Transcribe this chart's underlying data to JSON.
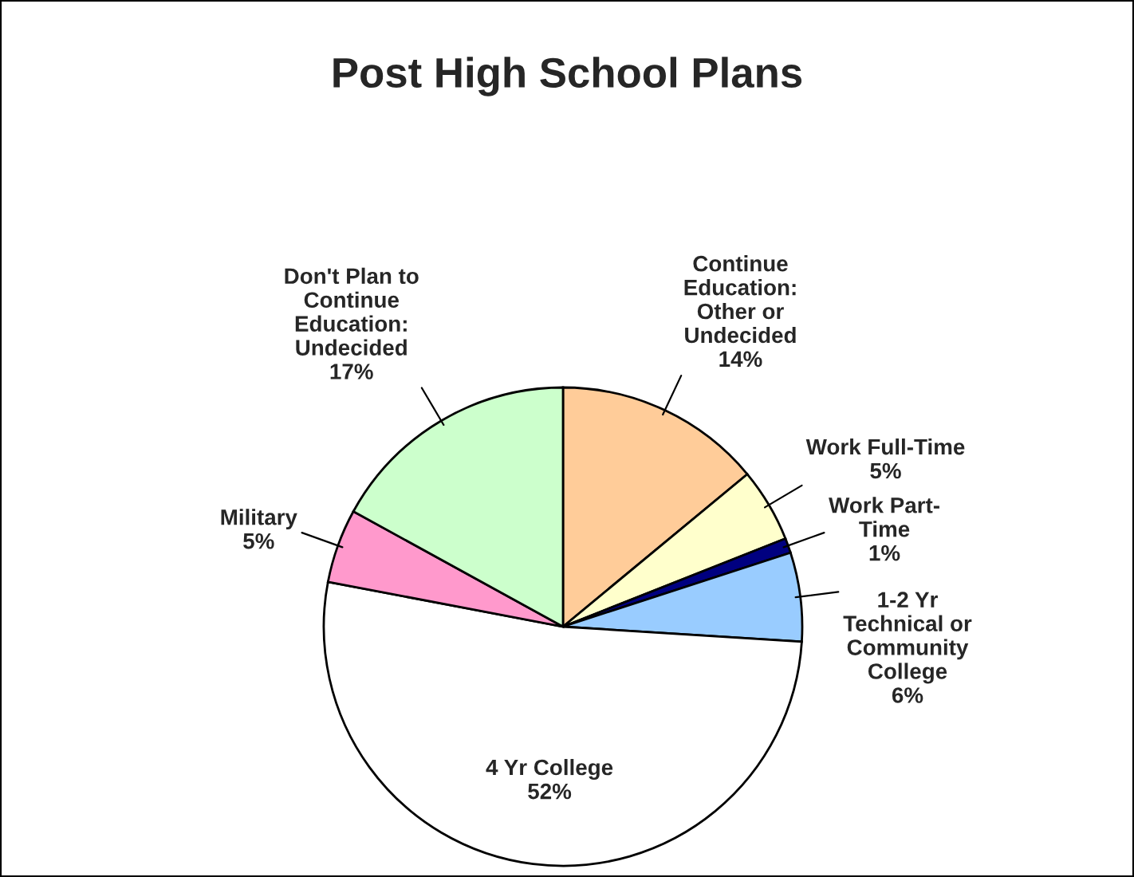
{
  "chart_data": {
    "type": "pie",
    "title": "Post High School Plans",
    "categories": [
      "Continue\nEducation:\nOther or\nUndecided",
      "Work Full-Time",
      "Work Part-\nTime",
      "1-2 Yr\nTechnical or\nCommunity\nCollege",
      "4 Yr College",
      "Military",
      "Don't Plan to\nContinue\nEducation:\nUndecided"
    ],
    "values": [
      14,
      5,
      1,
      6,
      52,
      5,
      17
    ],
    "value_labels": [
      "14%",
      "5%",
      "1%",
      "6%",
      "52%",
      "5%",
      "17%"
    ],
    "colors": [
      "#ffcc99",
      "#ffffcc",
      "#000080",
      "#99ccff",
      "#ffffff",
      "#ff99cc",
      "#ccffcc"
    ]
  }
}
